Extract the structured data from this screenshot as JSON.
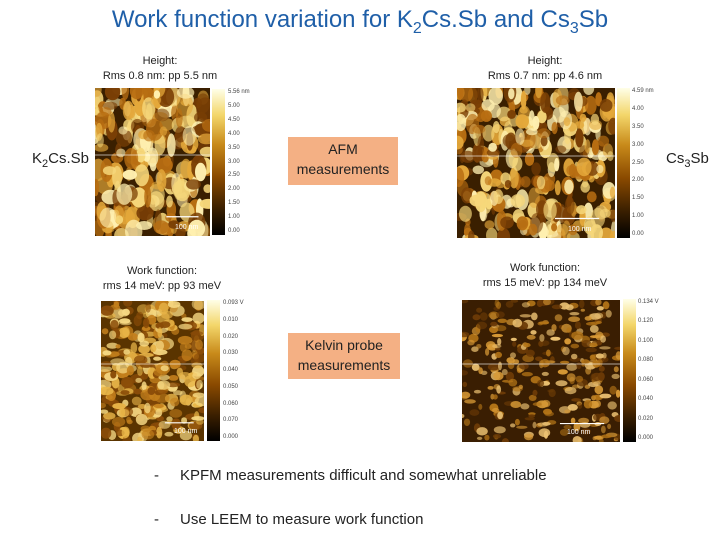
{
  "title": {
    "prefix": "Work function variation for K",
    "sub1": "2",
    "mid": "Cs.Sb and Cs",
    "sub2": "3",
    "suffix": "Sb"
  },
  "labels": {
    "left_material": {
      "prefix": "K",
      "sub": "2",
      "suffix": "Cs.Sb"
    },
    "right_material": {
      "prefix": "Cs",
      "sub": "3",
      "suffix": "Sb"
    }
  },
  "afm_left": {
    "caption_line1": "Height:",
    "caption_line2": "Rms 0.8 nm: pp 5.5 nm",
    "scale_label": "100 nm",
    "ticks": [
      "5.56 nm",
      "5.00",
      "4.50",
      "4.00",
      "3.50",
      "3.00",
      "2.50",
      "2.00",
      "1.50",
      "1.00",
      "0.00"
    ]
  },
  "afm_right": {
    "caption_line1": "Height:",
    "caption_line2": "Rms 0.7 nm: pp 4.6 nm",
    "scale_label": "100 nm",
    "ticks": [
      "4.59 nm",
      "4.00",
      "3.50",
      "3.00",
      "2.50",
      "2.00",
      "1.50",
      "1.00",
      "0.00"
    ]
  },
  "kelvin_left": {
    "caption_line1": "Work function:",
    "caption_line2": "rms 14 meV: pp 93 meV",
    "scale_label": "100 nm",
    "ticks": [
      "0.093 V",
      "0.010",
      "0.020",
      "0.030",
      "0.040",
      "0.050",
      "0.060",
      "0.070",
      "0.000"
    ]
  },
  "kelvin_right": {
    "caption_line1": "Work function:",
    "caption_line2": "rms 15 meV: pp 134 meV",
    "scale_label": "100 nm",
    "ticks": [
      "0.134 V",
      "0.120",
      "0.100",
      "0.080",
      "0.060",
      "0.040",
      "0.020",
      "0.000"
    ]
  },
  "afm_box": {
    "line1": "AFM",
    "line2": "measurements"
  },
  "kelvin_box": {
    "line1": "Kelvin probe",
    "line2": "measurements"
  },
  "bullets": {
    "dash": "-",
    "item1": "KPFM measurements difficult and somewhat unreliable",
    "item2": "Use LEEM to measure work function"
  },
  "colors": {
    "title": "#1f5fa8",
    "box": "#f4b084",
    "afm_base": "#3a1f00",
    "kelvin_base": "#5a3400"
  }
}
